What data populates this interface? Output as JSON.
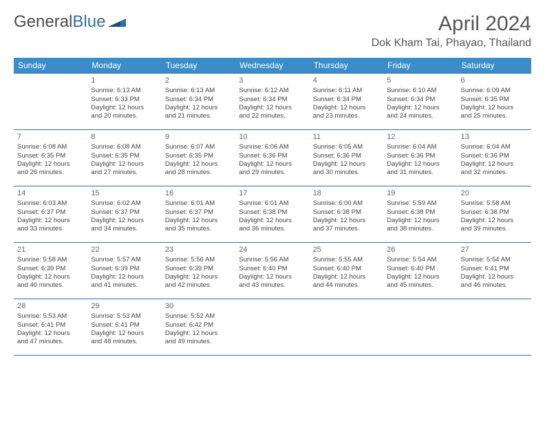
{
  "logo": {
    "part1": "General",
    "part2": "Blue"
  },
  "header": {
    "month_title": "April 2024",
    "location": "Dok Kham Tai, Phayao, Thailand"
  },
  "day_headers": [
    "Sunday",
    "Monday",
    "Tuesday",
    "Wednesday",
    "Thursday",
    "Friday",
    "Saturday"
  ],
  "colors": {
    "header_bg": "#3a8dc9",
    "border": "#2f6fa8"
  },
  "weeks": [
    [
      null,
      {
        "n": "1",
        "sr": "Sunrise: 6:13 AM",
        "ss": "Sunset: 6:33 PM",
        "d1": "Daylight: 12 hours",
        "d2": "and 20 minutes."
      },
      {
        "n": "2",
        "sr": "Sunrise: 6:13 AM",
        "ss": "Sunset: 6:34 PM",
        "d1": "Daylight: 12 hours",
        "d2": "and 21 minutes."
      },
      {
        "n": "3",
        "sr": "Sunrise: 6:12 AM",
        "ss": "Sunset: 6:34 PM",
        "d1": "Daylight: 12 hours",
        "d2": "and 22 minutes."
      },
      {
        "n": "4",
        "sr": "Sunrise: 6:11 AM",
        "ss": "Sunset: 6:34 PM",
        "d1": "Daylight: 12 hours",
        "d2": "and 23 minutes."
      },
      {
        "n": "5",
        "sr": "Sunrise: 6:10 AM",
        "ss": "Sunset: 6:34 PM",
        "d1": "Daylight: 12 hours",
        "d2": "and 24 minutes."
      },
      {
        "n": "6",
        "sr": "Sunrise: 6:09 AM",
        "ss": "Sunset: 6:35 PM",
        "d1": "Daylight: 12 hours",
        "d2": "and 25 minutes."
      }
    ],
    [
      {
        "n": "7",
        "sr": "Sunrise: 6:08 AM",
        "ss": "Sunset: 6:35 PM",
        "d1": "Daylight: 12 hours",
        "d2": "and 26 minutes."
      },
      {
        "n": "8",
        "sr": "Sunrise: 6:08 AM",
        "ss": "Sunset: 6:35 PM",
        "d1": "Daylight: 12 hours",
        "d2": "and 27 minutes."
      },
      {
        "n": "9",
        "sr": "Sunrise: 6:07 AM",
        "ss": "Sunset: 6:35 PM",
        "d1": "Daylight: 12 hours",
        "d2": "and 28 minutes."
      },
      {
        "n": "10",
        "sr": "Sunrise: 6:06 AM",
        "ss": "Sunset: 6:36 PM",
        "d1": "Daylight: 12 hours",
        "d2": "and 29 minutes."
      },
      {
        "n": "11",
        "sr": "Sunrise: 6:05 AM",
        "ss": "Sunset: 6:36 PM",
        "d1": "Daylight: 12 hours",
        "d2": "and 30 minutes."
      },
      {
        "n": "12",
        "sr": "Sunrise: 6:04 AM",
        "ss": "Sunset: 6:36 PM",
        "d1": "Daylight: 12 hours",
        "d2": "and 31 minutes."
      },
      {
        "n": "13",
        "sr": "Sunrise: 6:04 AM",
        "ss": "Sunset: 6:36 PM",
        "d1": "Daylight: 12 hours",
        "d2": "and 32 minutes."
      }
    ],
    [
      {
        "n": "14",
        "sr": "Sunrise: 6:03 AM",
        "ss": "Sunset: 6:37 PM",
        "d1": "Daylight: 12 hours",
        "d2": "and 33 minutes."
      },
      {
        "n": "15",
        "sr": "Sunrise: 6:02 AM",
        "ss": "Sunset: 6:37 PM",
        "d1": "Daylight: 12 hours",
        "d2": "and 34 minutes."
      },
      {
        "n": "16",
        "sr": "Sunrise: 6:01 AM",
        "ss": "Sunset: 6:37 PM",
        "d1": "Daylight: 12 hours",
        "d2": "and 35 minutes."
      },
      {
        "n": "17",
        "sr": "Sunrise: 6:01 AM",
        "ss": "Sunset: 6:38 PM",
        "d1": "Daylight: 12 hours",
        "d2": "and 36 minutes."
      },
      {
        "n": "18",
        "sr": "Sunrise: 6:00 AM",
        "ss": "Sunset: 6:38 PM",
        "d1": "Daylight: 12 hours",
        "d2": "and 37 minutes."
      },
      {
        "n": "19",
        "sr": "Sunrise: 5:59 AM",
        "ss": "Sunset: 6:38 PM",
        "d1": "Daylight: 12 hours",
        "d2": "and 38 minutes."
      },
      {
        "n": "20",
        "sr": "Sunrise: 5:58 AM",
        "ss": "Sunset: 6:38 PM",
        "d1": "Daylight: 12 hours",
        "d2": "and 39 minutes."
      }
    ],
    [
      {
        "n": "21",
        "sr": "Sunrise: 5:58 AM",
        "ss": "Sunset: 6:39 PM",
        "d1": "Daylight: 12 hours",
        "d2": "and 40 minutes."
      },
      {
        "n": "22",
        "sr": "Sunrise: 5:57 AM",
        "ss": "Sunset: 6:39 PM",
        "d1": "Daylight: 12 hours",
        "d2": "and 41 minutes."
      },
      {
        "n": "23",
        "sr": "Sunrise: 5:56 AM",
        "ss": "Sunset: 6:39 PM",
        "d1": "Daylight: 12 hours",
        "d2": "and 42 minutes."
      },
      {
        "n": "24",
        "sr": "Sunrise: 5:56 AM",
        "ss": "Sunset: 6:40 PM",
        "d1": "Daylight: 12 hours",
        "d2": "and 43 minutes."
      },
      {
        "n": "25",
        "sr": "Sunrise: 5:55 AM",
        "ss": "Sunset: 6:40 PM",
        "d1": "Daylight: 12 hours",
        "d2": "and 44 minutes."
      },
      {
        "n": "26",
        "sr": "Sunrise: 5:54 AM",
        "ss": "Sunset: 6:40 PM",
        "d1": "Daylight: 12 hours",
        "d2": "and 45 minutes."
      },
      {
        "n": "27",
        "sr": "Sunrise: 5:54 AM",
        "ss": "Sunset: 6:41 PM",
        "d1": "Daylight: 12 hours",
        "d2": "and 46 minutes."
      }
    ],
    [
      {
        "n": "28",
        "sr": "Sunrise: 5:53 AM",
        "ss": "Sunset: 6:41 PM",
        "d1": "Daylight: 12 hours",
        "d2": "and 47 minutes."
      },
      {
        "n": "29",
        "sr": "Sunrise: 5:53 AM",
        "ss": "Sunset: 6:41 PM",
        "d1": "Daylight: 12 hours",
        "d2": "and 48 minutes."
      },
      {
        "n": "30",
        "sr": "Sunrise: 5:52 AM",
        "ss": "Sunset: 6:42 PM",
        "d1": "Daylight: 12 hours",
        "d2": "and 49 minutes."
      },
      null,
      null,
      null,
      null
    ]
  ]
}
